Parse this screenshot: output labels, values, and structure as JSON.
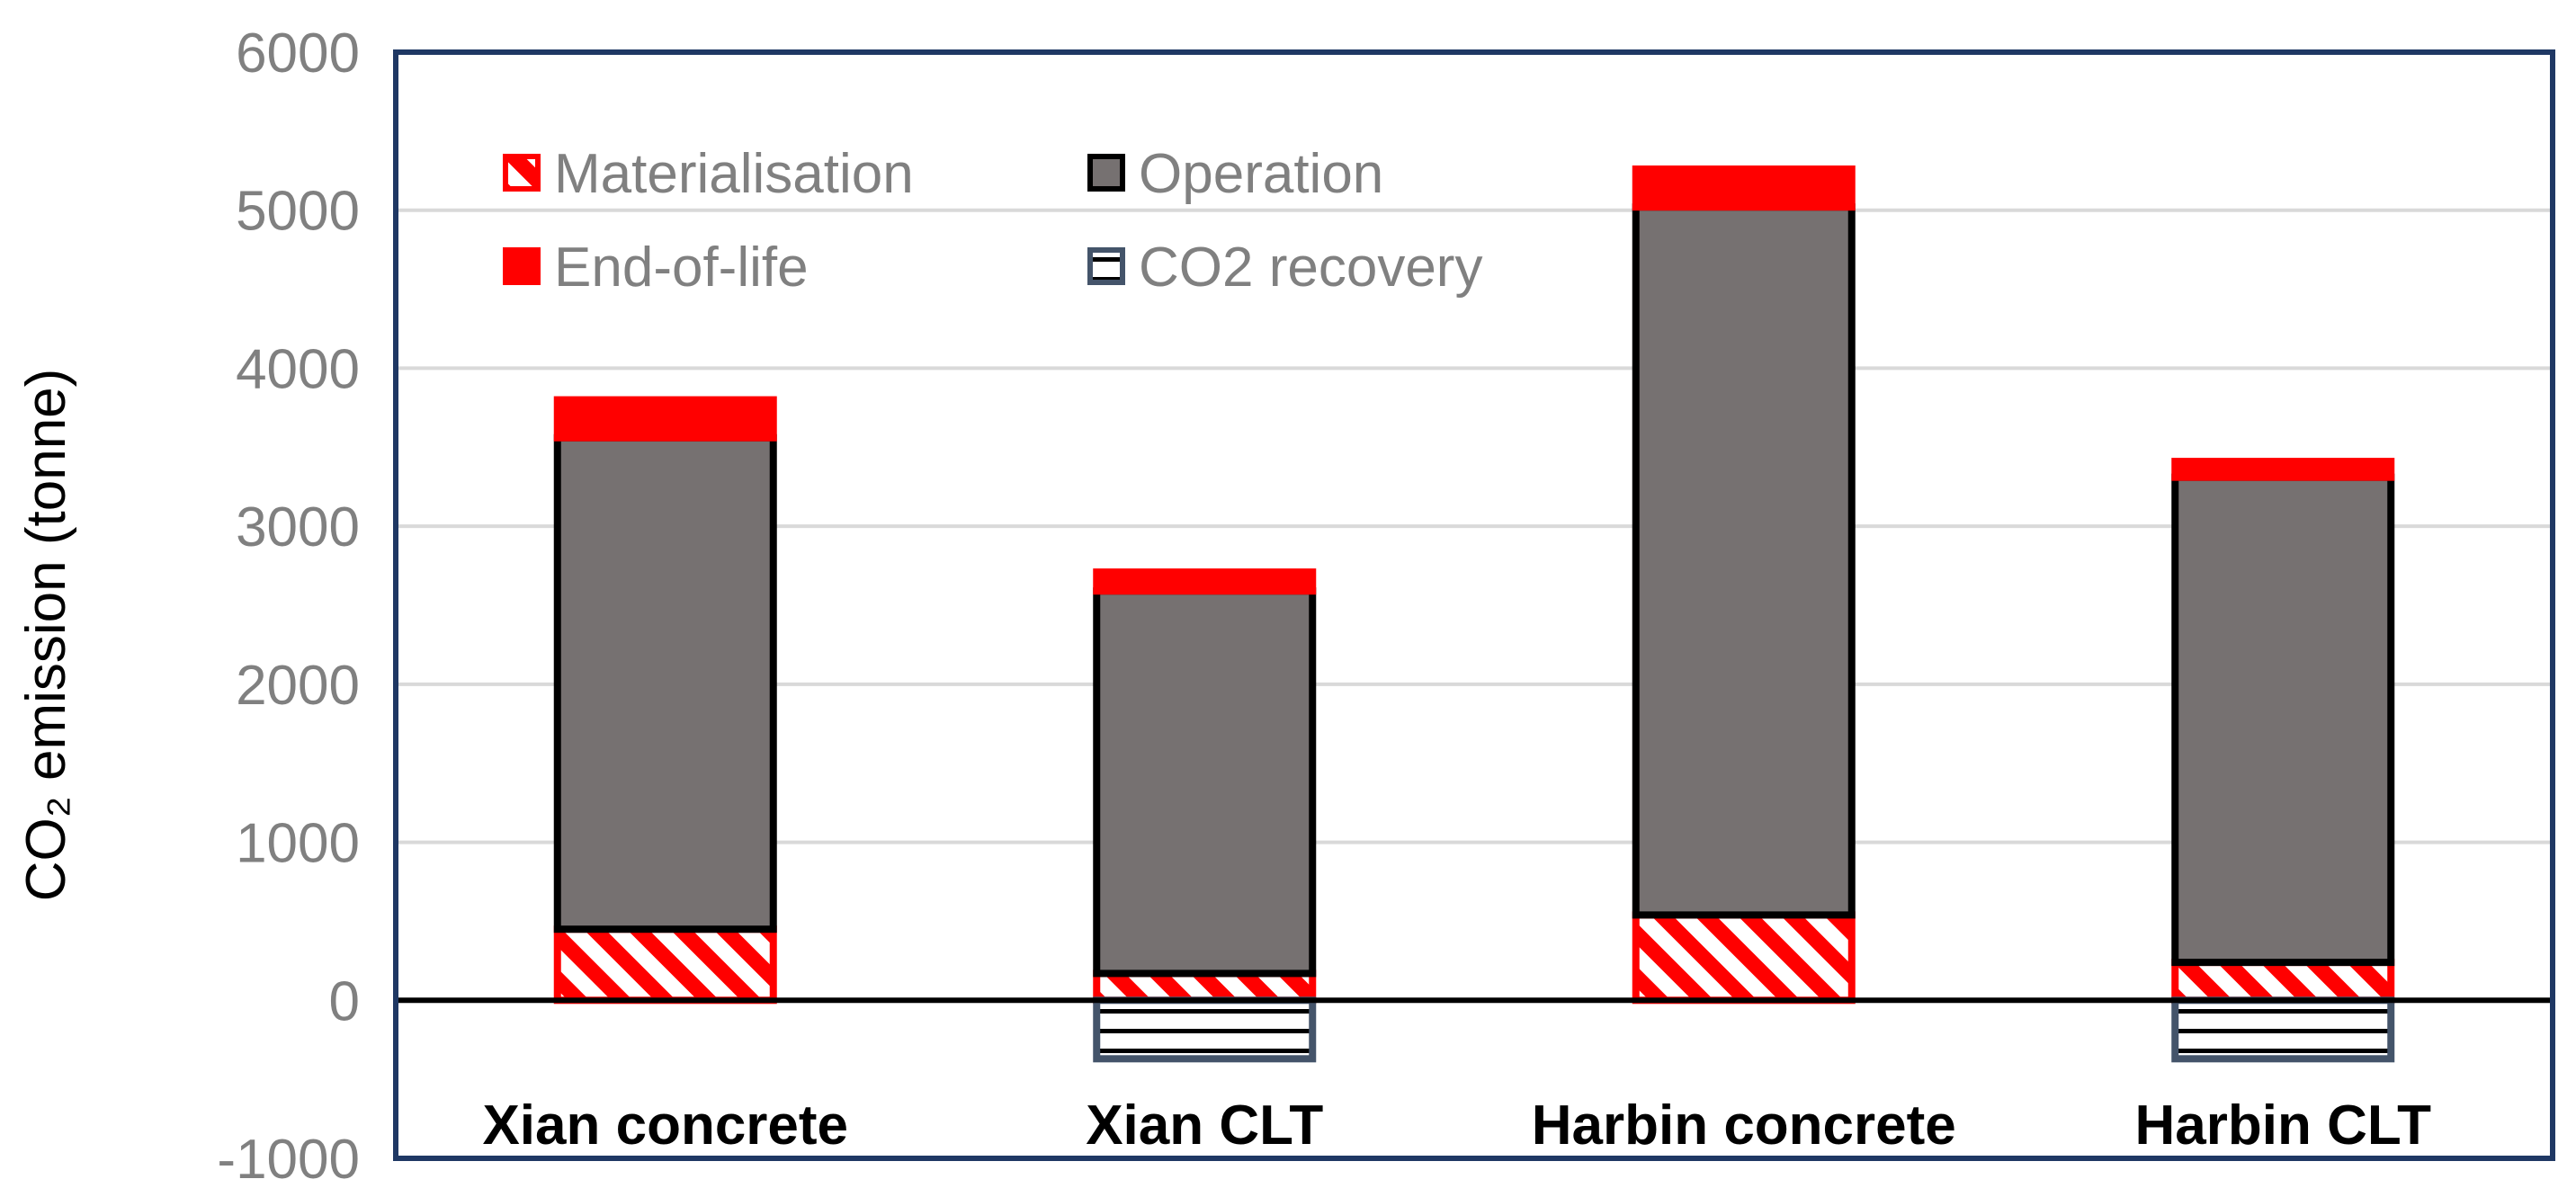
{
  "chart_data": {
    "type": "bar",
    "stacked": true,
    "categories": [
      "Xian concrete",
      "Xian CLT",
      "Harbin concrete",
      "Harbin CLT"
    ],
    "series": [
      {
        "name": "Materialisation",
        "values": [
          450,
          170,
          540,
          240
        ],
        "color": "#ff0000",
        "pattern": "diagonal-stripes",
        "outline": "#ff0000"
      },
      {
        "name": "Operation",
        "values": [
          3110,
          2420,
          4480,
          3070
        ],
        "color": "#767171",
        "pattern": "solid",
        "outline": "#000000"
      },
      {
        "name": "End-of-life",
        "values": [
          240,
          120,
          240,
          100
        ],
        "color": "#ff0000",
        "pattern": "solid",
        "outline": "#ff0000"
      },
      {
        "name": "CO2 recovery",
        "values": [
          0,
          -370,
          0,
          -370
        ],
        "color": "#ffffff",
        "pattern": "horizontal-stripes",
        "outline": "#44546a"
      }
    ],
    "ylabel": "CO₂ emission (tonne)",
    "ylim": [
      -1000,
      6000
    ],
    "yticks": [
      -1000,
      0,
      1000,
      2000,
      3000,
      4000,
      5000,
      6000
    ],
    "grid": true,
    "legend_position": "top-left",
    "colors": {
      "frame": "#1f3864",
      "grid": "#d9d9d9",
      "tick_text": "#808080",
      "legend_text": "#808080",
      "category_text": "#000000",
      "zero_line": "#000000"
    }
  }
}
